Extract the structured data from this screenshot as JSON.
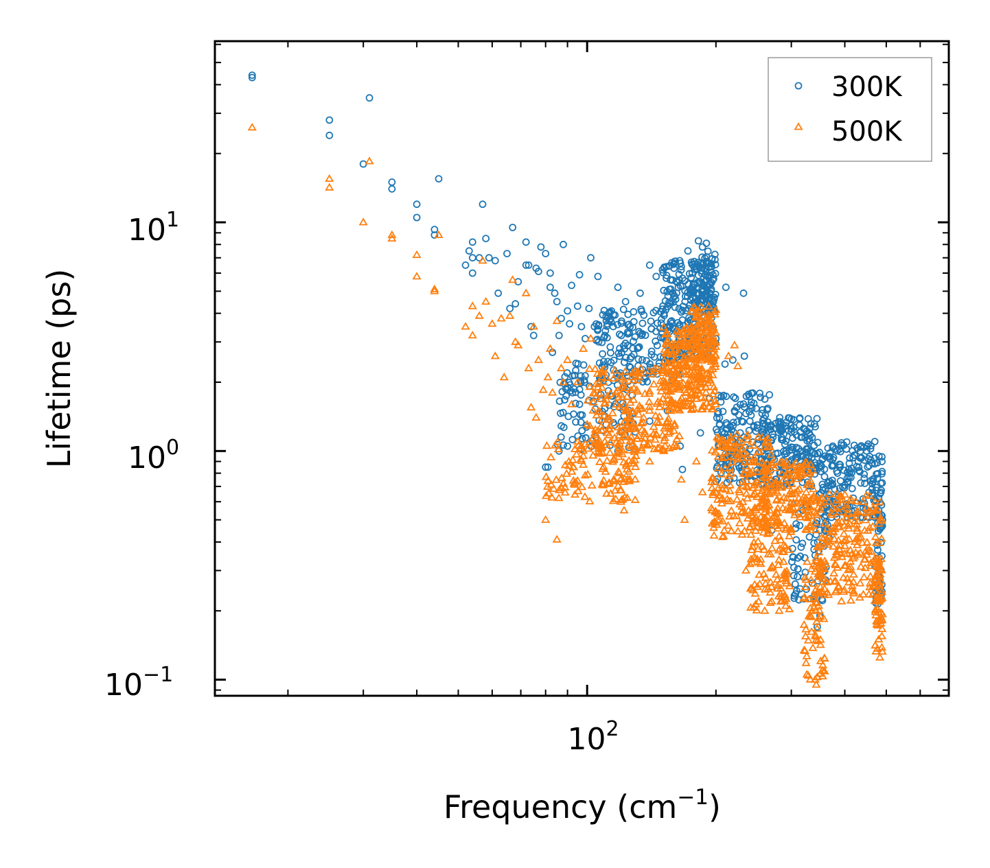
{
  "chart_data": {
    "type": "scatter",
    "xscale": "log",
    "yscale": "log",
    "xlabel": {
      "main": "Frequency (cm",
      "sup": "−1",
      "tail": ")"
    },
    "ylabel": "Lifetime (ps)",
    "xlim": [
      13.5,
      700
    ],
    "ylim": [
      0.085,
      62
    ],
    "x_ticks": [
      {
        "value": 100,
        "base": "10",
        "exp": "2"
      }
    ],
    "y_ticks": [
      {
        "value": 0.1,
        "base": "10",
        "exp": "−1"
      },
      {
        "value": 1,
        "base": "10",
        "exp": "0"
      },
      {
        "value": 10,
        "base": "10",
        "exp": "1"
      }
    ],
    "legend": {
      "location": "top-right"
    },
    "series": [
      {
        "name": "300K",
        "color": "#1f77b4",
        "marker": "circle-open",
        "points": [
          [
            16.5,
            44
          ],
          [
            16.5,
            43
          ],
          [
            25,
            28
          ],
          [
            25,
            24
          ],
          [
            30,
            18
          ],
          [
            31,
            35
          ],
          [
            35,
            15
          ],
          [
            35,
            14
          ],
          [
            40,
            12
          ],
          [
            40,
            10.5
          ],
          [
            44,
            9.3
          ],
          [
            44,
            8.8
          ],
          [
            45,
            15.5
          ],
          [
            52,
            6.5
          ],
          [
            53,
            7.5
          ],
          [
            54,
            8.2
          ],
          [
            54,
            7
          ],
          [
            54,
            6
          ],
          [
            56,
            7
          ],
          [
            57,
            12
          ],
          [
            58,
            8.5
          ],
          [
            59,
            7
          ],
          [
            61,
            6.8
          ],
          [
            62,
            4.9
          ],
          [
            65,
            7.3
          ],
          [
            66,
            4.2
          ],
          [
            67,
            9.5
          ],
          [
            68,
            4.4
          ],
          [
            69,
            5.5
          ],
          [
            72,
            6.5
          ],
          [
            72,
            8.2
          ],
          [
            73,
            6.5
          ],
          [
            74,
            3.5
          ],
          [
            75,
            3.2
          ],
          [
            76,
            6.3
          ],
          [
            77,
            6.1
          ],
          [
            78,
            7.8
          ],
          [
            80,
            7.3
          ],
          [
            82,
            5.2
          ],
          [
            82,
            6
          ],
          [
            83,
            2.7
          ],
          [
            84,
            4.9
          ],
          [
            85,
            4.5
          ],
          [
            86,
            3.2
          ],
          [
            87,
            3.8
          ],
          [
            88,
            8
          ],
          [
            90,
            4.1
          ],
          [
            91,
            3.6
          ],
          [
            92,
            5.3
          ],
          [
            95,
            4.3
          ],
          [
            96,
            5.9
          ],
          [
            97,
            3.5
          ],
          [
            99,
            3.1
          ],
          [
            101,
            4.2
          ],
          [
            102,
            7
          ],
          [
            104,
            3.5
          ],
          [
            106,
            5.8
          ],
          [
            110,
            3.2
          ],
          [
            114,
            4.1
          ],
          [
            118,
            5.2
          ],
          [
            123,
            4.5
          ],
          [
            126,
            3.5
          ],
          [
            133,
            4.9
          ],
          [
            140,
            6.5
          ],
          [
            145,
            5.8
          ],
          [
            150,
            6.2
          ],
          [
            158,
            5.6
          ],
          [
            166,
            6.4
          ],
          [
            172,
            7.5
          ],
          [
            176,
            5.2
          ],
          [
            182,
            8.3
          ],
          [
            186,
            7.8
          ],
          [
            190,
            8.1
          ],
          [
            195,
            5.1
          ],
          [
            211,
            5.2
          ],
          [
            219,
            2.5
          ],
          [
            233,
            2.6
          ],
          [
            232,
            4.9
          ],
          [
            200,
            3.1
          ],
          [
            210,
            2.4
          ],
          [
            222,
            1.7
          ],
          [
            80,
            0.85
          ],
          [
            81,
            0.85
          ],
          [
            86,
            1.0
          ],
          [
            90,
            1.05
          ],
          [
            93,
            1.45
          ],
          [
            96,
            1.6
          ],
          [
            116,
            1.3
          ],
          [
            118,
            1.0
          ],
          [
            140,
            1.35
          ],
          [
            154,
            1.5
          ],
          [
            165,
            1.05
          ],
          [
            167,
            0.83
          ],
          [
            184,
            1.2
          ],
          [
            193,
            1.7
          ],
          [
            204,
            1.3
          ],
          [
            221,
            1.5
          ],
          [
            240,
            1.35
          ],
          [
            250,
            1.3
          ],
          [
            262,
            1.2
          ],
          [
            270,
            0.45
          ],
          [
            282,
            1.4
          ],
          [
            300,
            1.25
          ],
          [
            318,
            1.15
          ],
          [
            330,
            0.9
          ],
          [
            341,
            0.35
          ],
          [
            345,
            0.17
          ],
          [
            350,
            0.19
          ],
          [
            360,
            0.95
          ],
          [
            375,
            1.05
          ],
          [
            390,
            0.85
          ],
          [
            410,
            0.8
          ],
          [
            430,
            0.9
          ],
          [
            450,
            1.0
          ],
          [
            470,
            1.1
          ],
          [
            480,
            0.55
          ],
          [
            490,
            0.5
          ]
        ],
        "bands": [
          {
            "x": [
              85,
              130
            ],
            "y": [
              1.0,
              2.5
            ],
            "n": 110
          },
          {
            "x": [
              105,
              165
            ],
            "y": [
              2.0,
              4.2
            ],
            "n": 160
          },
          {
            "x": [
              150,
              200
            ],
            "y": [
              2.5,
              6.8
            ],
            "n": 220
          },
          {
            "x": [
              175,
              200
            ],
            "y": [
              4.0,
              7.5
            ],
            "n": 80
          },
          {
            "x": [
              200,
              270
            ],
            "y": [
              0.7,
              1.8
            ],
            "n": 170
          },
          {
            "x": [
              255,
              345
            ],
            "y": [
              0.7,
              1.4
            ],
            "n": 180
          },
          {
            "x": [
              300,
              370
            ],
            "y": [
              0.22,
              0.6
            ],
            "n": 70
          },
          {
            "x": [
              345,
              490
            ],
            "y": [
              0.5,
              1.1
            ],
            "n": 190
          },
          {
            "x": [
              470,
              490
            ],
            "y": [
              0.2,
              0.7
            ],
            "n": 50
          }
        ]
      },
      {
        "name": "500K",
        "color": "#ff7f0e",
        "marker": "triangle-open",
        "points": [
          [
            16.5,
            26
          ],
          [
            25,
            15.5
          ],
          [
            25,
            14.2
          ],
          [
            30,
            10
          ],
          [
            31,
            18.5
          ],
          [
            35,
            8.8
          ],
          [
            35,
            8.5
          ],
          [
            40,
            7.2
          ],
          [
            40,
            5.8
          ],
          [
            44,
            5.1
          ],
          [
            44,
            5
          ],
          [
            45,
            8.8
          ],
          [
            52,
            3.5
          ],
          [
            54,
            3.2
          ],
          [
            54,
            4.3
          ],
          [
            56,
            3.9
          ],
          [
            57,
            6.8
          ],
          [
            58,
            4.5
          ],
          [
            60,
            3.6
          ],
          [
            61,
            2.6
          ],
          [
            63,
            3.8
          ],
          [
            64,
            2.1
          ],
          [
            66,
            3.9
          ],
          [
            67,
            5.6
          ],
          [
            68,
            3.0
          ],
          [
            69,
            2.9
          ],
          [
            72,
            4.9
          ],
          [
            73,
            2.3
          ],
          [
            74,
            1.55
          ],
          [
            75,
            3.5
          ],
          [
            76,
            1.4
          ],
          [
            77,
            2.5
          ],
          [
            79,
            1.85
          ],
          [
            81,
            2.1
          ],
          [
            82,
            2.8
          ],
          [
            83,
            1.8
          ],
          [
            85,
            3.7
          ],
          [
            87,
            2.3
          ],
          [
            88,
            2.0
          ],
          [
            90,
            2.5
          ],
          [
            92,
            1.6
          ],
          [
            95,
            2.0
          ],
          [
            98,
            2.8
          ],
          [
            102,
            3.1
          ],
          [
            80,
            0.5
          ],
          [
            85,
            0.41
          ],
          [
            88,
            0.72
          ],
          [
            93,
            0.85
          ],
          [
            98,
            0.95
          ],
          [
            104,
            1.05
          ],
          [
            110,
            1.1
          ],
          [
            120,
            0.6
          ],
          [
            122,
            0.55
          ],
          [
            130,
            0.95
          ],
          [
            140,
            0.9
          ],
          [
            151,
            1.0
          ],
          [
            166,
            0.75
          ],
          [
            169,
            0.5
          ],
          [
            180,
            0.9
          ],
          [
            186,
            0.66
          ],
          [
            196,
            0.55
          ],
          [
            221,
            2.9
          ],
          [
            225,
            2.35
          ],
          [
            214,
            2.6
          ],
          [
            235,
            0.3
          ],
          [
            241,
            0.25
          ],
          [
            260,
            0.2
          ],
          [
            270,
            0.22
          ],
          [
            281,
            0.2
          ],
          [
            298,
            0.75
          ],
          [
            341,
            0.1
          ],
          [
            343,
            0.095
          ],
          [
            349,
            0.2
          ],
          [
            483,
            0.125
          ],
          [
            480,
            0.15
          ]
        ],
        "bands": [
          {
            "x": [
              80,
              118
            ],
            "y": [
              0.6,
              1.1
            ],
            "n": 90
          },
          {
            "x": [
              100,
              165
            ],
            "y": [
              1.0,
              2.3
            ],
            "n": 220
          },
          {
            "x": [
              118,
              130
            ],
            "y": [
              0.6,
              1.3
            ],
            "n": 50
          },
          {
            "x": [
              150,
              200
            ],
            "y": [
              1.5,
              3.5
            ],
            "n": 240
          },
          {
            "x": [
              175,
              200
            ],
            "y": [
              2.5,
              4.3
            ],
            "n": 90
          },
          {
            "x": [
              195,
              270
            ],
            "y": [
              0.42,
              1.2
            ],
            "n": 200
          },
          {
            "x": [
              240,
              300
            ],
            "y": [
              0.2,
              0.5
            ],
            "n": 100
          },
          {
            "x": [
              255,
              340
            ],
            "y": [
              0.45,
              0.9
            ],
            "n": 160
          },
          {
            "x": [
              320,
              360
            ],
            "y": [
              0.1,
              0.35
            ],
            "n": 70
          },
          {
            "x": [
              340,
              490
            ],
            "y": [
              0.22,
              0.65
            ],
            "n": 220
          },
          {
            "x": [
              470,
              490
            ],
            "y": [
              0.13,
              0.35
            ],
            "n": 50
          }
        ]
      }
    ]
  }
}
